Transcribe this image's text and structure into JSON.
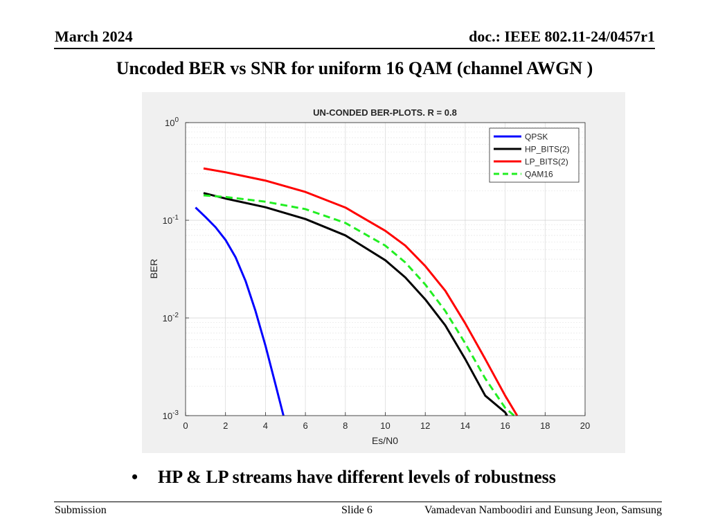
{
  "header": {
    "date": "March  2024",
    "doc": "doc.: IEEE 802.11-24/0457r1"
  },
  "slide": {
    "title": "Uncoded BER vs SNR for uniform 16 QAM (channel AWGN )",
    "bullet_mark": "•",
    "bullet": "HP  & LP streams have different levels of robustness"
  },
  "footer": {
    "left": "Submission",
    "center": "Slide 6",
    "right": "Vamadevan Namboodiri and Eunsung Jeon, Samsung"
  },
  "chart_data": {
    "type": "line",
    "title": "UN-CONDED BER-PLOTS. R = 0.8",
    "xlabel": "Es/N0",
    "ylabel": "BER",
    "xlim": [
      0,
      20
    ],
    "ylim": [
      0.001,
      1
    ],
    "yscale": "log",
    "xticks": [
      0,
      2,
      4,
      6,
      8,
      10,
      12,
      14,
      16,
      18,
      20
    ],
    "yticks": [
      {
        "value": 1,
        "base": "10",
        "exp": "0"
      },
      {
        "value": 0.1,
        "base": "10",
        "exp": "-1"
      },
      {
        "value": 0.01,
        "base": "10",
        "exp": "-2"
      },
      {
        "value": 0.001,
        "base": "10",
        "exp": "-3"
      }
    ],
    "grid": true,
    "legend_position": "top-right",
    "series": [
      {
        "name": "QPSK",
        "color": "#0000ff",
        "style": "solid",
        "x": [
          0.5,
          1,
          1.5,
          2,
          2.5,
          3,
          3.5,
          4,
          4.5,
          4.9
        ],
        "y": [
          0.135,
          0.108,
          0.085,
          0.063,
          0.042,
          0.024,
          0.0118,
          0.0052,
          0.0021,
          0.001
        ]
      },
      {
        "name": "HP_BITS(2)",
        "color": "#000000",
        "style": "solid",
        "x": [
          0.9,
          2,
          4,
          6,
          8,
          10,
          11,
          12,
          13,
          14,
          15,
          16,
          16.1
        ],
        "y": [
          0.19,
          0.167,
          0.136,
          0.103,
          0.07,
          0.039,
          0.026,
          0.0155,
          0.0084,
          0.0038,
          0.0016,
          0.00108,
          0.001
        ]
      },
      {
        "name": "LP_BITS(2)",
        "color": "#ff0000",
        "style": "solid",
        "x": [
          0.9,
          2,
          4,
          6,
          8,
          10,
          11,
          12,
          13,
          14,
          15,
          16,
          16.6
        ],
        "y": [
          0.34,
          0.31,
          0.255,
          0.195,
          0.135,
          0.078,
          0.055,
          0.034,
          0.019,
          0.0088,
          0.0038,
          0.0016,
          0.001
        ]
      },
      {
        "name": "QAM16",
        "color": "#22ee22",
        "style": "dashed",
        "x": [
          0.9,
          2,
          4,
          6,
          8,
          10,
          11,
          12,
          13,
          14,
          15,
          16,
          16.45
        ],
        "y": [
          0.18,
          0.173,
          0.155,
          0.13,
          0.094,
          0.055,
          0.037,
          0.022,
          0.0118,
          0.0055,
          0.0024,
          0.0012,
          0.001
        ]
      }
    ]
  }
}
